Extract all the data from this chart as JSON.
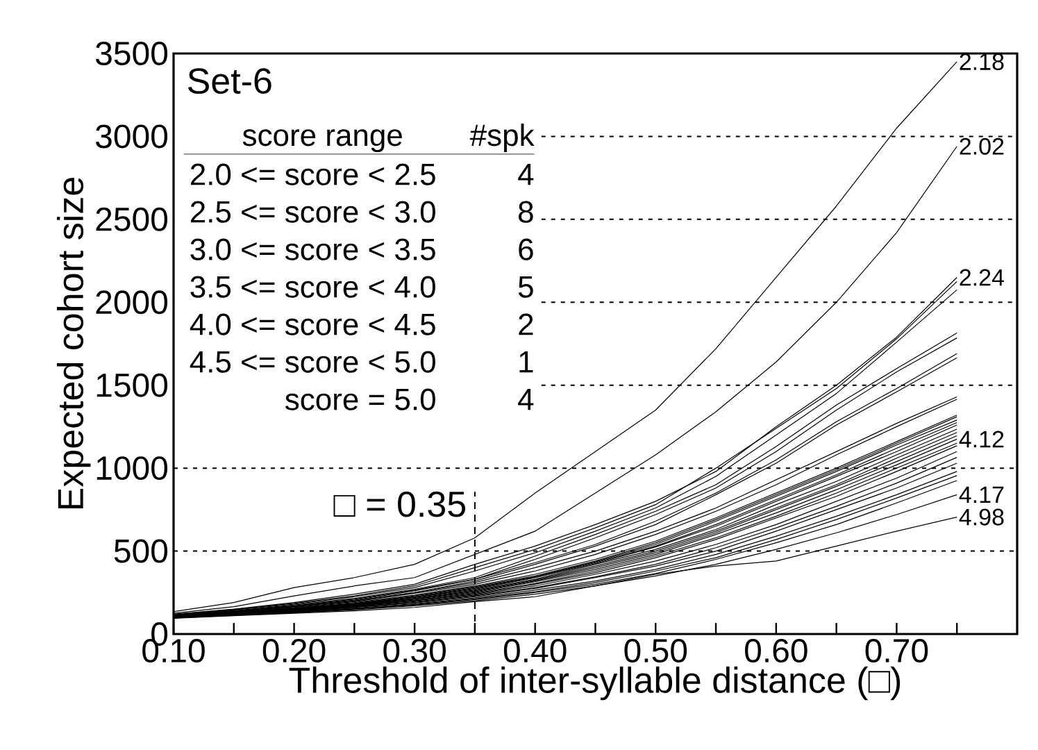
{
  "chart_data": {
    "type": "line",
    "title": "Set-6",
    "xlabel": "Threshold of inter-syllable distance (□)",
    "ylabel": "Expected cohort size",
    "x": [
      0.1,
      0.15,
      0.2,
      0.25,
      0.3,
      0.35,
      0.4,
      0.45,
      0.5,
      0.55,
      0.6,
      0.65,
      0.7,
      0.75
    ],
    "xlim": [
      0.1,
      0.8
    ],
    "ylim": [
      0,
      3500
    ],
    "xticks": [
      {
        "value": 0.1,
        "label": "0.10"
      },
      {
        "value": 0.15,
        "label": null
      },
      {
        "value": 0.2,
        "label": "0.20"
      },
      {
        "value": 0.25,
        "label": null
      },
      {
        "value": 0.3,
        "label": "0.30"
      },
      {
        "value": 0.35,
        "label": null
      },
      {
        "value": 0.4,
        "label": "0.40"
      },
      {
        "value": 0.45,
        "label": null
      },
      {
        "value": 0.5,
        "label": "0.50"
      },
      {
        "value": 0.55,
        "label": null
      },
      {
        "value": 0.6,
        "label": "0.60"
      },
      {
        "value": 0.65,
        "label": null
      },
      {
        "value": 0.7,
        "label": "0.70"
      },
      {
        "value": 0.75,
        "label": null
      }
    ],
    "yticks": [
      0,
      500,
      1000,
      1500,
      2000,
      2500,
      3000,
      3500
    ],
    "grid": "y",
    "ref_lines": [
      {
        "axis": "x",
        "value": 0.35,
        "label": "□ = 0.35",
        "line_style": "dashed"
      }
    ],
    "annotations": [
      "score range",
      "#spk",
      "2.0 <= score < 2.5",
      "4",
      "2.5 <= score < 3.0",
      "8",
      "3.0 <= score < 3.5",
      "6",
      "3.5 <= score < 4.0",
      "5",
      "4.0 <= score < 4.5",
      "2",
      "4.5 <= score < 5.0",
      "1",
      "score = 5.0",
      "4"
    ],
    "series": [
      {
        "name": "2.18",
        "color": "#000000",
        "values": [
          135,
          190,
          280,
          340,
          420,
          580,
          850,
          1100,
          1350,
          1720,
          2150,
          2580,
          3050,
          3450
        ]
      },
      {
        "name": "2.02",
        "color": "#000000",
        "values": [
          125,
          165,
          230,
          290,
          340,
          480,
          620,
          850,
          1080,
          1340,
          1640,
          2000,
          2420,
          2940
        ]
      },
      {
        "name": "2.24",
        "color": "#000000",
        "values": [
          120,
          150,
          190,
          240,
          300,
          420,
          530,
          660,
          800,
          980,
          1250,
          1500,
          1790,
          2150
        ]
      },
      {
        "color": "#000000",
        "values": [
          118,
          148,
          185,
          230,
          290,
          400,
          510,
          640,
          780,
          1000,
          1240,
          1480,
          1780,
          2125
        ]
      },
      {
        "color": "#000000",
        "values": [
          115,
          145,
          180,
          225,
          280,
          380,
          490,
          620,
          760,
          950,
          1200,
          1450,
          1760,
          2075
        ]
      },
      {
        "color": "#000000",
        "values": [
          115,
          140,
          175,
          215,
          270,
          340,
          470,
          600,
          740,
          900,
          1130,
          1380,
          1600,
          1815
        ]
      },
      {
        "color": "#000000",
        "values": [
          112,
          140,
          170,
          210,
          265,
          330,
          450,
          580,
          720,
          880,
          1100,
          1350,
          1580,
          1785
        ]
      },
      {
        "color": "#000000",
        "values": [
          110,
          138,
          168,
          205,
          260,
          330,
          430,
          540,
          680,
          850,
          1050,
          1280,
          1480,
          1690
        ]
      },
      {
        "color": "#000000",
        "values": [
          110,
          136,
          165,
          200,
          250,
          320,
          420,
          530,
          660,
          840,
          1030,
          1260,
          1460,
          1665
        ]
      },
      {
        "color": "#000000",
        "values": [
          112,
          138,
          165,
          200,
          250,
          310,
          400,
          500,
          620,
          760,
          930,
          1100,
          1270,
          1430
        ]
      },
      {
        "color": "#000000",
        "values": [
          110,
          135,
          160,
          195,
          245,
          300,
          380,
          480,
          600,
          740,
          900,
          1080,
          1250,
          1415
        ]
      },
      {
        "color": "#000000",
        "values": [
          108,
          132,
          158,
          190,
          235,
          290,
          360,
          450,
          560,
          700,
          850,
          1000,
          1160,
          1320
        ]
      },
      {
        "color": "#000000",
        "values": [
          109,
          130,
          155,
          185,
          230,
          285,
          350,
          440,
          550,
          690,
          840,
          990,
          1150,
          1310
        ]
      },
      {
        "color": "#000000",
        "values": [
          105,
          128,
          153,
          183,
          225,
          280,
          345,
          435,
          540,
          680,
          830,
          980,
          1140,
          1290
        ]
      },
      {
        "color": "#000000",
        "values": [
          106,
          128,
          152,
          182,
          222,
          275,
          340,
          430,
          530,
          660,
          810,
          960,
          1120,
          1275
        ]
      },
      {
        "color": "#000000",
        "values": [
          105,
          128,
          150,
          180,
          220,
          270,
          340,
          425,
          525,
          650,
          800,
          950,
          1100,
          1260
        ]
      },
      {
        "color": "#000000",
        "values": [
          105,
          126,
          150,
          178,
          215,
          265,
          330,
          420,
          510,
          630,
          780,
          920,
          1080,
          1235
        ]
      },
      {
        "color": "#000000",
        "values": [
          104,
          126,
          148,
          176,
          212,
          260,
          325,
          410,
          500,
          620,
          760,
          900,
          1060,
          1215
        ]
      },
      {
        "color": "#000000",
        "values": [
          104,
          125,
          146,
          174,
          210,
          255,
          320,
          400,
          490,
          610,
          750,
          890,
          1040,
          1195
        ]
      },
      {
        "name": "4.12",
        "color": "#000000",
        "values": [
          103,
          124,
          145,
          172,
          205,
          250,
          315,
          390,
          480,
          600,
          730,
          870,
          1020,
          1175
        ]
      },
      {
        "color": "#000000",
        "values": [
          103,
          122,
          144,
          170,
          202,
          245,
          305,
          380,
          470,
          580,
          710,
          850,
          1000,
          1150
        ]
      },
      {
        "color": "#000000",
        "values": [
          102,
          122,
          142,
          168,
          200,
          240,
          300,
          370,
          460,
          570,
          700,
          830,
          980,
          1135
        ]
      },
      {
        "color": "#000000",
        "values": [
          102,
          120,
          140,
          165,
          195,
          235,
          290,
          360,
          440,
          540,
          660,
          800,
          940,
          1100
        ]
      },
      {
        "color": "#000000",
        "values": [
          100,
          118,
          138,
          162,
          190,
          230,
          280,
          345,
          420,
          520,
          640,
          770,
          910,
          1065
        ]
      },
      {
        "color": "#000000",
        "values": [
          100,
          118,
          136,
          160,
          188,
          225,
          275,
          340,
          410,
          500,
          620,
          750,
          880,
          1030
        ]
      },
      {
        "color": "#000000",
        "values": [
          100,
          116,
          134,
          156,
          182,
          218,
          265,
          320,
          390,
          480,
          590,
          710,
          840,
          980
        ]
      },
      {
        "color": "#000000",
        "values": [
          98,
          115,
          132,
          152,
          178,
          212,
          255,
          310,
          380,
          460,
          570,
          690,
          820,
          955
        ]
      },
      {
        "color": "#000000",
        "values": [
          98,
          114,
          130,
          150,
          175,
          208,
          250,
          300,
          365,
          450,
          550,
          660,
          790,
          925
        ]
      },
      {
        "name": "4.17",
        "color": "#000000",
        "values": [
          96,
          112,
          128,
          146,
          170,
          200,
          240,
          290,
          350,
          420,
          510,
          610,
          720,
          840
        ]
      },
      {
        "name": "4.98",
        "color": "#000000",
        "values": [
          95,
          110,
          125,
          140,
          160,
          195,
          225,
          290,
          360,
          410,
          440,
          530,
          620,
          705
        ]
      }
    ]
  }
}
